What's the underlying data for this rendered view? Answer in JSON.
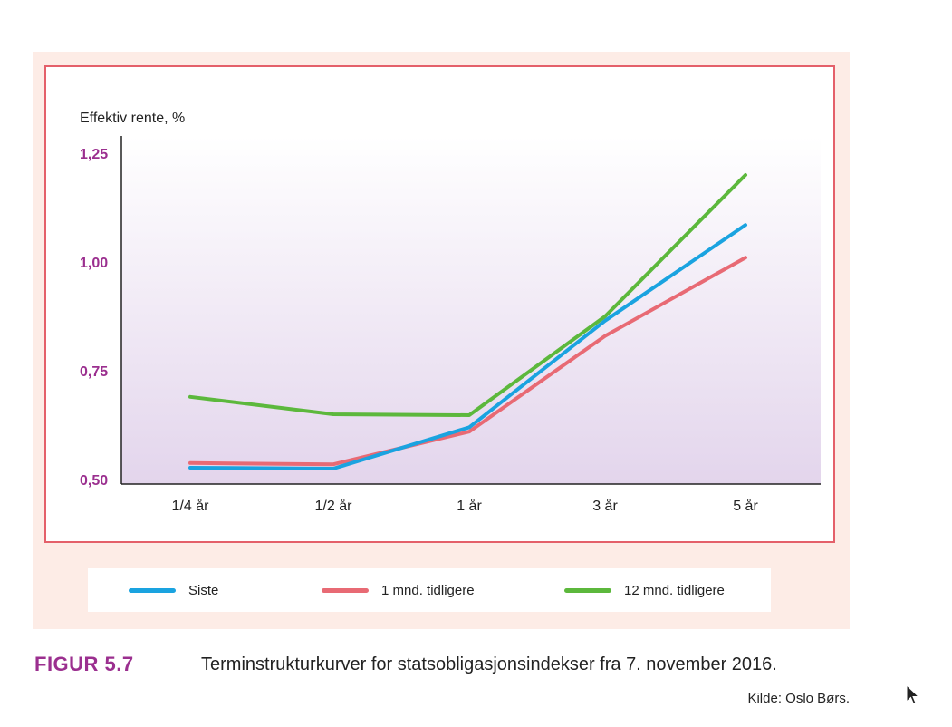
{
  "chart_data": {
    "type": "line",
    "ylabel": "Effektiv rente, %",
    "ylim": [
      0.5,
      1.25
    ],
    "yticks": [
      "1,25",
      "1,00",
      "0,75",
      "0,50"
    ],
    "ytick_values": [
      1.25,
      1.0,
      0.75,
      0.5
    ],
    "categories": [
      "1/4 år",
      "1/2 år",
      "1 år",
      "3 år",
      "5 år"
    ],
    "series": [
      {
        "name": "Siste",
        "color": "#1aa3e0",
        "values": [
          0.527,
          0.525,
          0.62,
          0.865,
          1.085
        ]
      },
      {
        "name": "1 mnd. tidligere",
        "color": "#e86a74",
        "values": [
          0.538,
          0.535,
          0.61,
          0.83,
          1.01
        ]
      },
      {
        "name": "12 mnd. tidligere",
        "color": "#5cb83c",
        "values": [
          0.69,
          0.65,
          0.648,
          0.875,
          1.2
        ]
      }
    ],
    "grid": false,
    "legend": "bottom"
  },
  "caption": {
    "figure_number": "FIGUR 5.7",
    "text": "Terminstrukturkurver for statsobligasjonsindekser fra 7. november 2016.",
    "source": "Kilde: Oslo Børs."
  },
  "colors": {
    "accent": "#9b2f8f",
    "frame": "#e4606a",
    "panel": "#fdece6"
  }
}
